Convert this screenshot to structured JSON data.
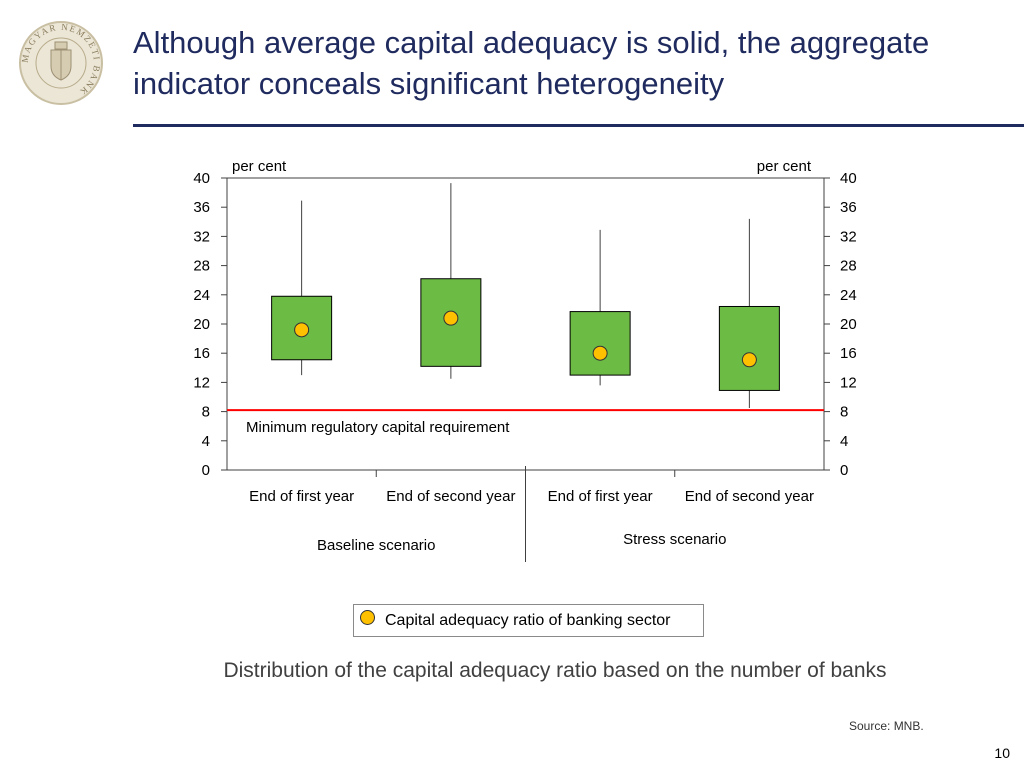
{
  "header": {
    "title": "Although average capital adequacy is solid, the aggregate indicator conceals significant heterogeneity",
    "logo_text": "MAGYAR NEMZETI BANK"
  },
  "chart_data": {
    "type": "box",
    "left_axis_unit": "per cent",
    "right_axis_unit": "per cent",
    "ylim": [
      0,
      40
    ],
    "yticks": [
      0,
      4,
      8,
      12,
      16,
      20,
      24,
      28,
      32,
      36,
      40
    ],
    "categories": [
      "End of first year",
      "End of second year",
      "End of first year",
      "End of second year"
    ],
    "groups": [
      {
        "label": "Baseline scenario",
        "categories": [
          0,
          1
        ]
      },
      {
        "label": "Stress scenario",
        "categories": [
          2,
          3
        ]
      }
    ],
    "boxes": [
      {
        "min": 13.0,
        "q1": 15.1,
        "q3": 23.8,
        "max": 36.9
      },
      {
        "min": 12.5,
        "q1": 14.2,
        "q3": 26.2,
        "max": 39.3
      },
      {
        "min": 11.6,
        "q1": 13.0,
        "q3": 21.7,
        "max": 32.9
      },
      {
        "min": 8.5,
        "q1": 10.9,
        "q3": 22.4,
        "max": 34.4
      }
    ],
    "series": [
      {
        "name": "Capital adequacy ratio of banking sector",
        "values": [
          19.2,
          20.8,
          16.0,
          15.1
        ]
      }
    ],
    "reference_line": {
      "value": 8.2,
      "label": "Minimum regulatory capital requirement",
      "color": "#ff0000"
    },
    "colors": {
      "box_fill": "#6cbb45",
      "point_fill": "#ffc000"
    },
    "grid": false,
    "legend_position": "bottom"
  },
  "legend": {
    "label": "Capital adequacy ratio of banking sector"
  },
  "caption": "Distribution of the capital adequacy ratio based on the number of banks",
  "source": "Source: MNB.",
  "page_number": "10"
}
